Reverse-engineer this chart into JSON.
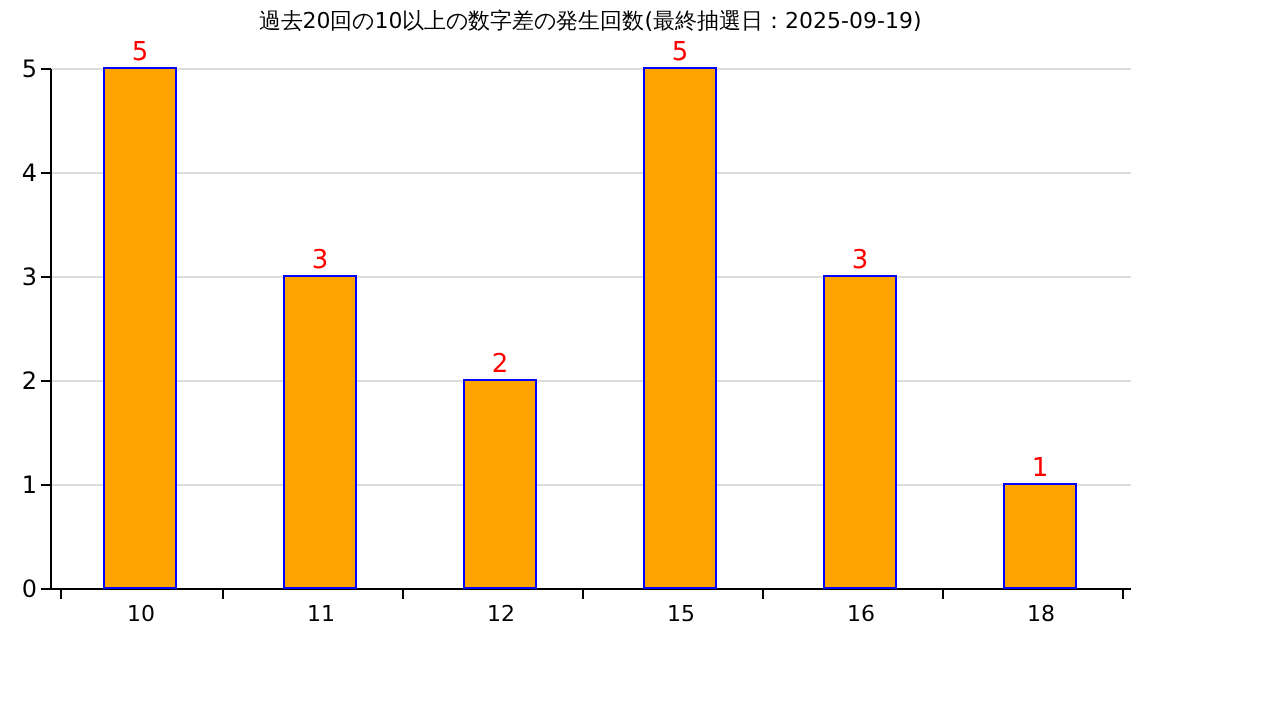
{
  "chart_data": {
    "type": "bar",
    "title": "過去20回の10以上の数字差の発生回数(最終抽選日：2025-09-19)",
    "categories": [
      "10",
      "11",
      "12",
      "15",
      "16",
      "18"
    ],
    "values": [
      5,
      3,
      2,
      5,
      3,
      1
    ],
    "color": "#ffa500",
    "ylim": [
      0,
      5
    ],
    "yticks": [
      0,
      1,
      2,
      3,
      4,
      5
    ],
    "grid": "y",
    "data_labels": true
  }
}
